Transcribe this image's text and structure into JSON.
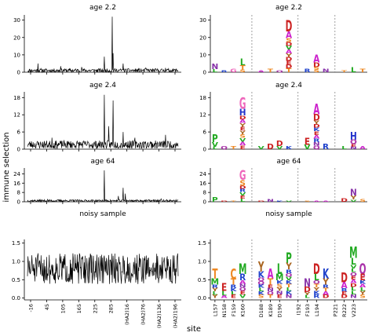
{
  "figure": {
    "ylabel": "immune selection",
    "xlabel": "site"
  },
  "chart_data": [
    {
      "type": "line",
      "title": "age 2.2",
      "ylim": [
        0,
        33
      ],
      "yticks": [
        0,
        10,
        20,
        30
      ],
      "x_range": [
        -16,
        329
      ],
      "baseline": 1.0,
      "noise": 1.1,
      "seed": 11,
      "spikes": [
        [
          8,
          5
        ],
        [
          60,
          3.5
        ],
        [
          108,
          3
        ],
        [
          160,
          9
        ],
        [
          178,
          32
        ],
        [
          180,
          11
        ],
        [
          203,
          5
        ],
        [
          255,
          2.5
        ],
        [
          300,
          2.5
        ]
      ]
    },
    {
      "type": "line",
      "title": "age 2.4",
      "ylim": [
        0,
        20
      ],
      "yticks": [
        0,
        6,
        12,
        18
      ],
      "x_range": [
        -16,
        329
      ],
      "baseline": 1.6,
      "noise": 1.4,
      "seed": 23,
      "spikes": [
        [
          40,
          4
        ],
        [
          160,
          19
        ],
        [
          170,
          8
        ],
        [
          180,
          17
        ],
        [
          203,
          6
        ],
        [
          230,
          4
        ],
        [
          300,
          5
        ]
      ]
    },
    {
      "type": "line",
      "title": "age 64",
      "ylim": [
        0,
        29
      ],
      "yticks": [
        0,
        8,
        16,
        24
      ],
      "x_range": [
        -16,
        329
      ],
      "baseline": 0.9,
      "noise": 0.9,
      "seed": 37,
      "spikes": [
        [
          30,
          2
        ],
        [
          160,
          27
        ],
        [
          192,
          5
        ],
        [
          203,
          12
        ],
        [
          208,
          7
        ],
        [
          290,
          2.5
        ]
      ]
    },
    {
      "type": "line",
      "title": "noisy sample",
      "ylim": [
        -0.05,
        1.6
      ],
      "yticks": [
        0.0,
        0.5,
        1.0,
        1.5
      ],
      "x_range": [
        -16,
        329
      ],
      "baseline": 0.8,
      "noise": 0.42,
      "seed": 51,
      "clip": [
        0.05,
        1.5
      ],
      "x_tick_labels": [
        "-16",
        "45",
        "105",
        "165",
        "225",
        "285",
        "(HA2)16",
        "(HA2)76",
        "(HA2)136",
        "(HA2)196"
      ]
    },
    {
      "type": "logo",
      "title": "age 2.2",
      "ylim": [
        0,
        33
      ],
      "yticks": [
        0,
        10,
        20,
        30
      ],
      "totals": [
        5,
        1,
        2,
        8,
        3,
        1,
        2,
        1,
        30,
        1,
        2,
        10,
        2,
        1,
        1,
        3,
        2
      ],
      "stack_labels": [
        [
          "",
          ""
        ],
        [
          "",
          ""
        ],
        [
          "G",
          ""
        ],
        [
          "",
          ""
        ],
        [
          "",
          ""
        ],
        [
          "",
          ""
        ],
        [
          "",
          ""
        ],
        [
          "",
          ""
        ],
        [
          "D",
          "A"
        ],
        [
          "",
          ""
        ],
        [
          "",
          ""
        ],
        [
          "A",
          "D"
        ],
        [
          "",
          ""
        ],
        [
          "",
          ""
        ],
        [
          "",
          ""
        ],
        [
          "",
          ""
        ],
        [
          "",
          ""
        ]
      ]
    },
    {
      "type": "logo",
      "title": "age 2.4",
      "ylim": [
        0,
        20
      ],
      "yticks": [
        0,
        6,
        12,
        18
      ],
      "totals": [
        5,
        1,
        1,
        18,
        11,
        1,
        2,
        3,
        1,
        2,
        4,
        16,
        2,
        1,
        1,
        6,
        1
      ],
      "stack_labels": [
        [
          "P",
          ""
        ],
        [
          "",
          ""
        ],
        [
          "",
          ""
        ],
        [
          "G",
          "H"
        ],
        [
          "T",
          "S"
        ],
        [
          "",
          ""
        ],
        [
          "",
          ""
        ],
        [
          "D",
          ""
        ],
        [
          "",
          ""
        ],
        [
          "",
          ""
        ],
        [
          "E",
          ""
        ],
        [
          "A",
          "D"
        ],
        [
          "",
          ""
        ],
        [
          "",
          ""
        ],
        [
          "",
          ""
        ],
        [
          "H",
          ""
        ],
        [
          "",
          ""
        ]
      ]
    },
    {
      "type": "logo",
      "title": "age 64",
      "ylim": [
        0,
        29
      ],
      "yticks": [
        0,
        8,
        16,
        24
      ],
      "totals": [
        4,
        1,
        1,
        27,
        5,
        1,
        2,
        1,
        1,
        2,
        1,
        1,
        1,
        1,
        3,
        11,
        2
      ],
      "stack_labels": [
        [
          "P",
          ""
        ],
        [
          "",
          ""
        ],
        [
          "",
          ""
        ],
        [
          "G",
          "S"
        ],
        [
          "T",
          ""
        ],
        [
          "",
          ""
        ],
        [
          "",
          ""
        ],
        [
          "",
          ""
        ],
        [
          "",
          ""
        ],
        [
          "",
          ""
        ],
        [
          "",
          ""
        ],
        [
          "",
          ""
        ],
        [
          "",
          ""
        ],
        [
          "",
          ""
        ],
        [
          "D",
          ""
        ],
        [
          "N",
          ""
        ],
        [
          "",
          ""
        ]
      ]
    },
    {
      "type": "logo",
      "title": "noisy sample",
      "ylim": [
        -0.05,
        1.6
      ],
      "yticks": [
        0.0,
        0.5,
        1.0,
        1.5
      ],
      "totals": [
        0.8,
        0.4,
        0.8,
        0.95,
        0.75,
        1.0,
        0.8,
        0.95,
        1.25,
        0.7,
        0.55,
        0.95,
        0.8,
        0.5,
        0.7,
        1.4,
        0.95
      ],
      "stack_labels": [
        [
          "T",
          "M"
        ],
        [
          "",
          ""
        ],
        [
          "C",
          ""
        ],
        [
          "M",
          "R"
        ],
        [
          "L",
          "M"
        ],
        [
          "Y",
          "K"
        ],
        [
          "A",
          "T"
        ],
        [
          "L",
          "M"
        ],
        [
          "P",
          "Y"
        ],
        [
          "K",
          "Y"
        ],
        [
          "N",
          ""
        ],
        [
          "",
          ""
        ],
        [
          "K",
          "Y"
        ],
        [
          "",
          ""
        ],
        [
          "D",
          ""
        ],
        [
          "M",
          "L"
        ],
        [
          "",
          ""
        ]
      ],
      "sites": [
        "L157",
        "N158",
        "F159",
        "K160",
        "",
        "D188",
        "K189",
        "D190",
        "",
        "I192",
        "F193",
        "L194",
        "",
        "P221",
        "R222",
        "V223",
        ""
      ]
    }
  ],
  "colors": {
    "A": "#cc22cc",
    "D": "#cc2222",
    "E": "#cc2222",
    "G": "#ee66bb",
    "H": "#2233cc",
    "K": "#2244cc",
    "R": "#2244cc",
    "N": "#8833aa",
    "S": "#ee8822",
    "T": "#ee8822",
    "L": "#22aa22",
    "M": "#22aa22",
    "P": "#22aa22",
    "Y": "#aa6622",
    "C": "#ee8822",
    "F": "#aa6622",
    "I": "#22aa22",
    "V": "#22aa22",
    "Q": "#aa33aa",
    "W": "#22aa22",
    "line": "#000000",
    "divider": "#777777"
  }
}
